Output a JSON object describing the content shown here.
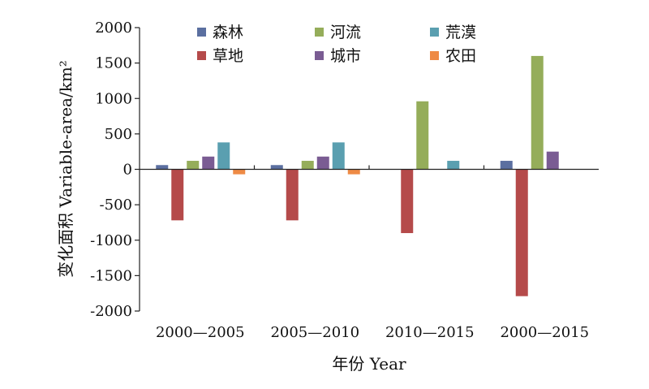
{
  "chart_data": {
    "type": "bar",
    "categories": [
      "2000—2005",
      "2005—2010",
      "2010—2015",
      "2000—2015"
    ],
    "series": [
      {
        "name": "森林",
        "color": "#5b6fa0",
        "values": [
          60,
          60,
          0,
          120
        ]
      },
      {
        "name": "草地",
        "color": "#b54a4a",
        "values": [
          -720,
          -720,
          -900,
          -1790
        ]
      },
      {
        "name": "河流",
        "color": "#95ad5a",
        "values": [
          120,
          120,
          960,
          1600
        ]
      },
      {
        "name": "城市",
        "color": "#7a5c93",
        "values": [
          180,
          180,
          0,
          250
        ]
      },
      {
        "name": "荒漠",
        "color": "#5a9fb0",
        "values": [
          380,
          380,
          120,
          0
        ]
      },
      {
        "name": "农田",
        "color": "#ee8a45",
        "values": [
          -70,
          -70,
          0,
          0
        ]
      }
    ],
    "ylim": [
      -2000,
      2000
    ],
    "yticks": [
      2000,
      1500,
      1000,
      500,
      0,
      -500,
      -1000,
      -1500,
      -2000
    ],
    "ylabel": "变化面积 Variable-area/km²",
    "xlabel": "年份 Year",
    "legend_placement": "top-inside",
    "grid": false
  }
}
